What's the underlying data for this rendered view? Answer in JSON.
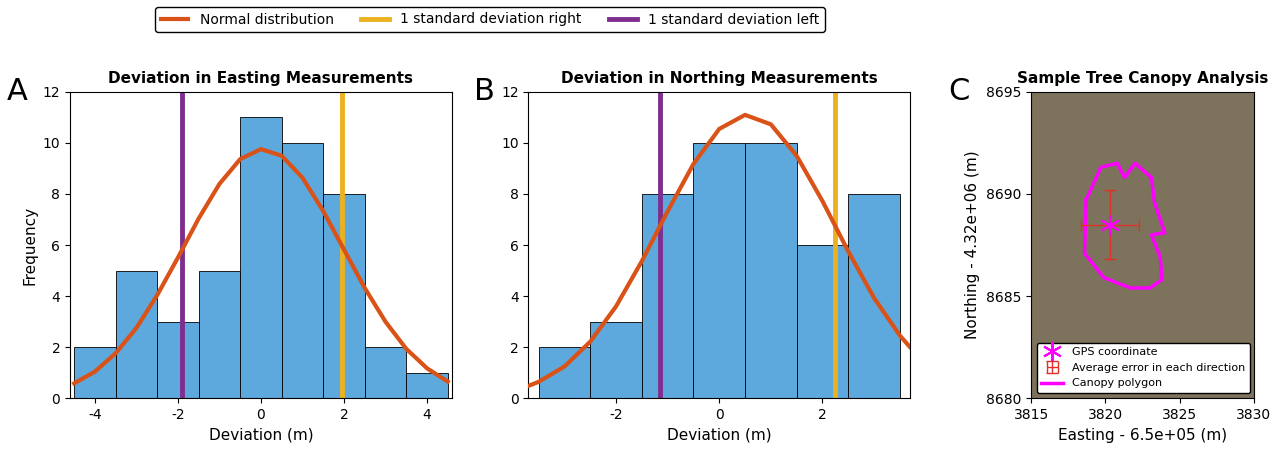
{
  "chart_data": [
    {
      "type": "histogram",
      "panel_label": "A",
      "title": "Deviation in Easting Measurements",
      "x_label": "Deviation (m)",
      "y_label": "Frequency",
      "bins": [
        -4.5,
        -3.5,
        -2.5,
        -1.5,
        -0.5,
        0.5,
        1.5,
        2.5,
        3.5,
        4.5
      ],
      "counts": [
        2,
        5,
        3,
        5,
        11,
        10,
        8,
        2,
        1
      ],
      "color": "#5da9dd",
      "series": [
        {
          "name": "Normal distribution",
          "type": "line",
          "color": "#d95319",
          "x": [
            -4.5,
            -4.0,
            -3.5,
            -3.0,
            -2.5,
            -2.0,
            -1.5,
            -1.0,
            -0.5,
            0.0,
            0.5,
            1.0,
            1.5,
            2.0,
            2.5,
            3.0,
            3.5,
            4.0,
            4.5
          ],
          "values": [
            0.59,
            1.05,
            1.77,
            2.76,
            4.04,
            5.51,
            7.04,
            8.39,
            9.36,
            9.75,
            9.49,
            8.63,
            7.33,
            5.82,
            4.32,
            3.0,
            1.94,
            1.18,
            0.66
          ]
        },
        {
          "name": "1 standard deviation right",
          "type": "vline",
          "color": "#edb120",
          "x": 1.95
        },
        {
          "name": "1 standard deviation left",
          "type": "vline",
          "color": "#7e2f8e",
          "x": -1.9
        }
      ],
      "legend": "upper center",
      "xlim": [
        -4.6,
        4.6
      ],
      "xticks": [
        -4,
        -2,
        0,
        2,
        4
      ],
      "ylim": [
        0,
        12
      ],
      "yticks": [
        0,
        2,
        4,
        6,
        8,
        10,
        12
      ]
    },
    {
      "type": "histogram",
      "panel_label": "B",
      "title": "Deviation in Northing Measurements",
      "x_label": "Deviation (m)",
      "bins": [
        -3.5,
        -2.5,
        -1.5,
        -0.5,
        0.5,
        1.5,
        2.5,
        3.5
      ],
      "counts": [
        2,
        3,
        8,
        10,
        10,
        6,
        8
      ],
      "color": "#5da9dd",
      "series": [
        {
          "name": "Normal distribution",
          "type": "line",
          "color": "#d95319",
          "x": [
            -3.7,
            -3.5,
            -3.0,
            -2.5,
            -2.0,
            -1.5,
            -1.0,
            -0.5,
            0.0,
            0.5,
            1.0,
            1.5,
            2.0,
            2.5,
            3.0,
            3.5,
            3.7
          ],
          "values": [
            0.49,
            0.65,
            1.25,
            2.22,
            3.6,
            5.37,
            7.32,
            9.17,
            10.54,
            11.09,
            10.72,
            9.49,
            7.72,
            5.75,
            3.93,
            2.46,
            2.0
          ]
        },
        {
          "name": "1 standard deviation right",
          "type": "vline",
          "color": "#edb120",
          "x": 2.25
        },
        {
          "name": "1 standard deviation left",
          "type": "vline",
          "color": "#7e2f8e",
          "x": -1.15
        }
      ],
      "xlim": [
        -3.7,
        3.7
      ],
      "xticks": [
        -2,
        0,
        2
      ],
      "ylim": [
        0,
        12
      ],
      "yticks": [
        0,
        2,
        4,
        6,
        8,
        10,
        12
      ]
    },
    {
      "type": "map",
      "panel_label": "C",
      "title": "Sample Tree Canopy Analysis",
      "x_label": "Easting - 6.5e+05 (m)",
      "y_label": "Northing - 4.32e+06 (m)",
      "series": [
        {
          "name": "GPS coordinate",
          "type": "scatter",
          "color": "#ff00ff",
          "marker": "asterisk",
          "x": [
            3820.3
          ],
          "values": [
            8688.5
          ]
        },
        {
          "name": "Average error in each direction",
          "type": "errorbar",
          "color": "#e0302a",
          "x": [
            3820.3
          ],
          "values": [
            8688.5
          ],
          "xerr": 1.95,
          "yerr": 1.7
        },
        {
          "name": "Canopy polygon",
          "type": "polygon",
          "color": "#ff00ff",
          "x": [
            3818.7,
            3819.7,
            3820.8,
            3821.3,
            3822.0,
            3823.1,
            3823.3,
            3824.0,
            3823.1,
            3823.7,
            3823.8,
            3823.0,
            3821.7,
            3819.9,
            3818.6
          ],
          "values": [
            8689.7,
            8691.3,
            8691.5,
            8690.8,
            8691.5,
            8690.8,
            8689.6,
            8688.1,
            8688.0,
            8686.9,
            8685.8,
            8685.4,
            8685.4,
            8685.9,
            8687.1
          ]
        }
      ],
      "legend": "lower left",
      "xlim": [
        3815,
        3830
      ],
      "xticks": [
        3815,
        3820,
        3825,
        3830
      ],
      "ylim": [
        8680,
        8695
      ],
      "yticks": [
        8680,
        8685,
        8690,
        8695
      ]
    }
  ]
}
